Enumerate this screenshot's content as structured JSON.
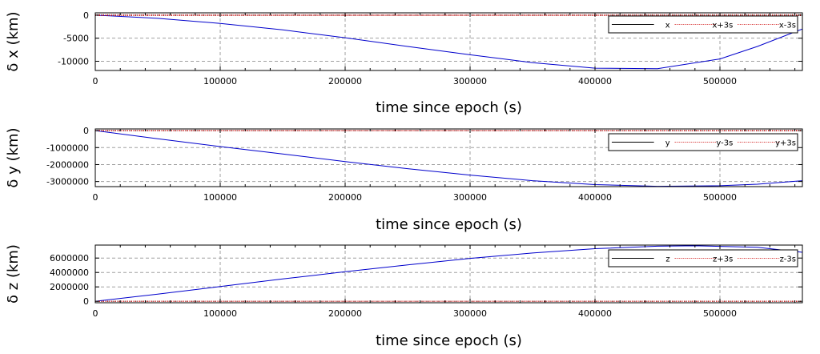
{
  "colors": {
    "series_main": "#0000cc",
    "series_bounds": "#cc0000",
    "grid": "#a0a0a0",
    "frame": "#000000"
  },
  "chart_data": [
    {
      "type": "line",
      "xlabel": "time since epoch (s)",
      "ylabel": "δ x (km)",
      "xlim": [
        0,
        566000
      ],
      "ylim": [
        -12000,
        500
      ],
      "xticks": [
        0,
        100000,
        200000,
        300000,
        400000,
        500000
      ],
      "yticks": [
        -10000,
        -5000,
        0
      ],
      "grid": true,
      "legend": "top-right",
      "x": [
        0,
        50000,
        100000,
        150000,
        200000,
        250000,
        300000,
        350000,
        400000,
        450000,
        500000,
        530000,
        566000
      ],
      "series": [
        {
          "name": "x",
          "style": "solid",
          "values": [
            0,
            -700,
            -1800,
            -3200,
            -4900,
            -6800,
            -8600,
            -10300,
            -11500,
            -11600,
            -9500,
            -6800,
            -3000
          ]
        },
        {
          "name": "x+3s",
          "style": "dotted",
          "values": [
            100,
            100,
            100,
            100,
            100,
            100,
            100,
            100,
            100,
            100,
            100,
            100,
            100
          ]
        },
        {
          "name": "x-3s",
          "style": "dotted",
          "values": [
            -100,
            -100,
            -100,
            -100,
            -100,
            -100,
            -100,
            -100,
            -100,
            -100,
            -100,
            -100,
            -100
          ]
        }
      ]
    },
    {
      "type": "line",
      "xlabel": "time since epoch (s)",
      "ylabel": "δ y (km)",
      "xlim": [
        0,
        566000
      ],
      "ylim": [
        -3300000,
        100000
      ],
      "xticks": [
        0,
        100000,
        200000,
        300000,
        400000,
        500000
      ],
      "yticks": [
        -3000000,
        -2000000,
        -1000000,
        0
      ],
      "grid": true,
      "legend": "top-right",
      "x": [
        0,
        50000,
        100000,
        150000,
        200000,
        250000,
        300000,
        350000,
        400000,
        450000,
        500000,
        530000,
        566000
      ],
      "series": [
        {
          "name": "y",
          "style": "solid",
          "values": [
            0,
            -480000,
            -940000,
            -1380000,
            -1820000,
            -2240000,
            -2620000,
            -2950000,
            -3180000,
            -3280000,
            -3250000,
            -3160000,
            -2950000
          ]
        },
        {
          "name": "y-3s",
          "style": "dotted",
          "values": [
            -15000,
            -15000,
            -15000,
            -15000,
            -15000,
            -15000,
            -15000,
            -15000,
            -15000,
            -15000,
            -15000,
            -15000,
            -15000
          ]
        },
        {
          "name": "y+3s",
          "style": "dotted",
          "values": [
            15000,
            15000,
            15000,
            15000,
            15000,
            15000,
            15000,
            15000,
            15000,
            15000,
            15000,
            15000,
            15000
          ]
        }
      ]
    },
    {
      "type": "line",
      "xlabel": "time since epoch (s)",
      "ylabel": "δ z (km)",
      "xlim": [
        0,
        566000
      ],
      "ylim": [
        -200000,
        7800000
      ],
      "xticks": [
        0,
        100000,
        200000,
        300000,
        400000,
        500000
      ],
      "yticks": [
        0,
        2000000,
        4000000,
        6000000
      ],
      "grid": true,
      "legend": "top-right",
      "x": [
        0,
        50000,
        100000,
        150000,
        200000,
        250000,
        300000,
        350000,
        400000,
        450000,
        480000,
        530000,
        566000
      ],
      "series": [
        {
          "name": "z",
          "style": "solid",
          "values": [
            0,
            1000000,
            2050000,
            3100000,
            4100000,
            5050000,
            5950000,
            6700000,
            7300000,
            7650000,
            7700000,
            7500000,
            6800000
          ]
        },
        {
          "name": "z+3s",
          "style": "dotted",
          "values": [
            20000,
            20000,
            20000,
            20000,
            20000,
            20000,
            20000,
            20000,
            20000,
            20000,
            20000,
            20000,
            20000
          ]
        },
        {
          "name": "z-3s",
          "style": "dotted",
          "values": [
            -20000,
            -20000,
            -20000,
            -20000,
            -20000,
            -20000,
            -20000,
            -20000,
            -20000,
            -20000,
            -20000,
            -20000,
            -20000
          ]
        }
      ]
    }
  ]
}
